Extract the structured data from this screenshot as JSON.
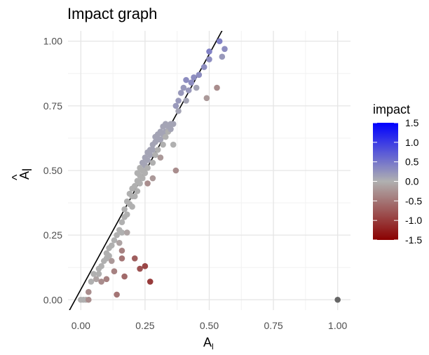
{
  "chart_data": {
    "type": "scatter",
    "title": "Impact graph",
    "xlabel": "A",
    "xlabel_subscript": "l",
    "ylabel": "A",
    "ylabel_accent": "^",
    "ylabel_subscript": "l",
    "xlim": [
      -0.05,
      1.05
    ],
    "ylim": [
      -0.04,
      1.04
    ],
    "x_ticks": [
      "0.00",
      "0.25",
      "0.50",
      "0.75",
      "1.00"
    ],
    "y_ticks": [
      "0.00",
      "0.25",
      "0.50",
      "0.75",
      "1.00"
    ],
    "grid": true,
    "reference_line": {
      "slope": 1.82,
      "intercept": 0.04
    },
    "legend": {
      "title": "impact",
      "placement": "right",
      "ticks": [
        "1.5",
        "1.0",
        "0.5",
        "0.0",
        "-0.5",
        "-1.0",
        "-1.5"
      ],
      "range": [
        -1.5,
        1.5
      ],
      "colors": {
        "high": "#0000ff",
        "mid": "#b0b0b0",
        "low": "#8b0000"
      }
    },
    "points": [
      {
        "x": 0.0,
        "y": 0.0,
        "impact": 0.0
      },
      {
        "x": 0.01,
        "y": 0.0,
        "impact": 0.0
      },
      {
        "x": 0.02,
        "y": 0.0,
        "impact": 0.0
      },
      {
        "x": 0.03,
        "y": 0.03,
        "impact": -0.3
      },
      {
        "x": 0.03,
        "y": 0.0,
        "impact": -0.3
      },
      {
        "x": 0.04,
        "y": 0.07,
        "impact": 0.0
      },
      {
        "x": 0.05,
        "y": 0.1,
        "impact": 0.0
      },
      {
        "x": 0.06,
        "y": 0.08,
        "impact": -0.1
      },
      {
        "x": 0.07,
        "y": 0.1,
        "impact": 0.0
      },
      {
        "x": 0.07,
        "y": 0.12,
        "impact": 0.0
      },
      {
        "x": 0.08,
        "y": 0.13,
        "impact": 0.0
      },
      {
        "x": 0.08,
        "y": 0.07,
        "impact": -0.3
      },
      {
        "x": 0.09,
        "y": 0.15,
        "impact": 0.0
      },
      {
        "x": 0.1,
        "y": 0.16,
        "impact": 0.0
      },
      {
        "x": 0.1,
        "y": 0.18,
        "impact": 0.0
      },
      {
        "x": 0.1,
        "y": 0.08,
        "impact": -0.4
      },
      {
        "x": 0.11,
        "y": 0.2,
        "impact": 0.0
      },
      {
        "x": 0.11,
        "y": 0.17,
        "impact": 0.0
      },
      {
        "x": 0.12,
        "y": 0.21,
        "impact": 0.0
      },
      {
        "x": 0.12,
        "y": 0.15,
        "impact": -0.2
      },
      {
        "x": 0.13,
        "y": 0.23,
        "impact": 0.0
      },
      {
        "x": 0.13,
        "y": 0.11,
        "impact": -0.4
      },
      {
        "x": 0.14,
        "y": 0.25,
        "impact": 0.0
      },
      {
        "x": 0.14,
        "y": 0.02,
        "impact": -0.5
      },
      {
        "x": 0.15,
        "y": 0.27,
        "impact": 0.0
      },
      {
        "x": 0.15,
        "y": 0.22,
        "impact": -0.1
      },
      {
        "x": 0.16,
        "y": 0.3,
        "impact": 0.0
      },
      {
        "x": 0.16,
        "y": 0.26,
        "impact": 0.0
      },
      {
        "x": 0.16,
        "y": 0.19,
        "impact": -0.4
      },
      {
        "x": 0.16,
        "y": 0.16,
        "impact": -0.5
      },
      {
        "x": 0.17,
        "y": 0.32,
        "impact": 0.0
      },
      {
        "x": 0.17,
        "y": 0.09,
        "impact": -0.6
      },
      {
        "x": 0.17,
        "y": 0.35,
        "impact": 0.0
      },
      {
        "x": 0.18,
        "y": 0.33,
        "impact": 0.0
      },
      {
        "x": 0.18,
        "y": 0.26,
        "impact": -0.1
      },
      {
        "x": 0.18,
        "y": 0.38,
        "impact": 0.0
      },
      {
        "x": 0.19,
        "y": 0.37,
        "impact": 0.0
      },
      {
        "x": 0.19,
        "y": 0.41,
        "impact": 0.0
      },
      {
        "x": 0.2,
        "y": 0.4,
        "impact": 0.0
      },
      {
        "x": 0.2,
        "y": 0.43,
        "impact": 0.0
      },
      {
        "x": 0.2,
        "y": 0.36,
        "impact": 0.0
      },
      {
        "x": 0.21,
        "y": 0.44,
        "impact": 0.0
      },
      {
        "x": 0.21,
        "y": 0.16,
        "impact": -0.7
      },
      {
        "x": 0.21,
        "y": 0.4,
        "impact": 0.0
      },
      {
        "x": 0.22,
        "y": 0.46,
        "impact": 0.0
      },
      {
        "x": 0.22,
        "y": 0.42,
        "impact": 0.0
      },
      {
        "x": 0.22,
        "y": 0.49,
        "impact": 0.0
      },
      {
        "x": 0.23,
        "y": 0.48,
        "impact": 0.0
      },
      {
        "x": 0.23,
        "y": 0.12,
        "impact": -0.8
      },
      {
        "x": 0.23,
        "y": 0.51,
        "impact": 0.0
      },
      {
        "x": 0.23,
        "y": 0.45,
        "impact": 0.0
      },
      {
        "x": 0.24,
        "y": 0.5,
        "impact": 0.0
      },
      {
        "x": 0.24,
        "y": 0.53,
        "impact": 0.1
      },
      {
        "x": 0.24,
        "y": 0.47,
        "impact": 0.0
      },
      {
        "x": 0.25,
        "y": 0.52,
        "impact": 0.1
      },
      {
        "x": 0.25,
        "y": 0.55,
        "impact": 0.1
      },
      {
        "x": 0.25,
        "y": 0.13,
        "impact": -0.9
      },
      {
        "x": 0.25,
        "y": 0.49,
        "impact": 0.0
      },
      {
        "x": 0.26,
        "y": 0.54,
        "impact": 0.1
      },
      {
        "x": 0.26,
        "y": 0.57,
        "impact": 0.1
      },
      {
        "x": 0.26,
        "y": 0.51,
        "impact": 0.0
      },
      {
        "x": 0.26,
        "y": 0.45,
        "impact": -0.3
      },
      {
        "x": 0.27,
        "y": 0.56,
        "impact": 0.1
      },
      {
        "x": 0.27,
        "y": 0.58,
        "impact": 0.1
      },
      {
        "x": 0.27,
        "y": 0.07,
        "impact": -1.0
      },
      {
        "x": 0.28,
        "y": 0.58,
        "impact": 0.1
      },
      {
        "x": 0.28,
        "y": 0.6,
        "impact": 0.1
      },
      {
        "x": 0.28,
        "y": 0.53,
        "impact": 0.0
      },
      {
        "x": 0.28,
        "y": 0.47,
        "impact": -0.2
      },
      {
        "x": 0.29,
        "y": 0.61,
        "impact": 0.1
      },
      {
        "x": 0.29,
        "y": 0.63,
        "impact": 0.1
      },
      {
        "x": 0.29,
        "y": 0.56,
        "impact": 0.0
      },
      {
        "x": 0.3,
        "y": 0.62,
        "impact": 0.1
      },
      {
        "x": 0.3,
        "y": 0.64,
        "impact": 0.1
      },
      {
        "x": 0.3,
        "y": 0.58,
        "impact": 0.0
      },
      {
        "x": 0.31,
        "y": 0.65,
        "impact": 0.1
      },
      {
        "x": 0.31,
        "y": 0.62,
        "impact": 0.1
      },
      {
        "x": 0.31,
        "y": 0.55,
        "impact": -0.2
      },
      {
        "x": 0.32,
        "y": 0.67,
        "impact": 0.1
      },
      {
        "x": 0.32,
        "y": 0.64,
        "impact": 0.1
      },
      {
        "x": 0.32,
        "y": 0.6,
        "impact": 0.0
      },
      {
        "x": 0.33,
        "y": 0.68,
        "impact": 0.1
      },
      {
        "x": 0.33,
        "y": 0.65,
        "impact": 0.1
      },
      {
        "x": 0.33,
        "y": 0.63,
        "impact": 0.0
      },
      {
        "x": 0.34,
        "y": 0.67,
        "impact": 0.1
      },
      {
        "x": 0.34,
        "y": 0.65,
        "impact": 0.0
      },
      {
        "x": 0.35,
        "y": 0.68,
        "impact": 0.1
      },
      {
        "x": 0.35,
        "y": 0.66,
        "impact": 0.1
      },
      {
        "x": 0.36,
        "y": 0.68,
        "impact": 0.1
      },
      {
        "x": 0.36,
        "y": 0.6,
        "impact": 0.0
      },
      {
        "x": 0.37,
        "y": 0.5,
        "impact": -0.3
      },
      {
        "x": 0.37,
        "y": 0.75,
        "impact": 0.2
      },
      {
        "x": 0.38,
        "y": 0.77,
        "impact": 0.2
      },
      {
        "x": 0.38,
        "y": 0.73,
        "impact": 0.1
      },
      {
        "x": 0.39,
        "y": 0.8,
        "impact": 0.2
      },
      {
        "x": 0.4,
        "y": 0.82,
        "impact": 0.2
      },
      {
        "x": 0.41,
        "y": 0.77,
        "impact": 0.1
      },
      {
        "x": 0.41,
        "y": 0.85,
        "impact": 0.3
      },
      {
        "x": 0.42,
        "y": 0.81,
        "impact": 0.2
      },
      {
        "x": 0.43,
        "y": 0.84,
        "impact": 0.3
      },
      {
        "x": 0.44,
        "y": 0.86,
        "impact": 0.3
      },
      {
        "x": 0.45,
        "y": 0.82,
        "impact": 0.1
      },
      {
        "x": 0.46,
        "y": 0.87,
        "impact": 0.3
      },
      {
        "x": 0.48,
        "y": 0.9,
        "impact": 0.3
      },
      {
        "x": 0.49,
        "y": 0.78,
        "impact": -0.2
      },
      {
        "x": 0.5,
        "y": 0.96,
        "impact": 0.4
      },
      {
        "x": 0.5,
        "y": 0.93,
        "impact": 0.3
      },
      {
        "x": 0.53,
        "y": 0.82,
        "impact": -0.3
      },
      {
        "x": 0.54,
        "y": 1.0,
        "impact": 0.4
      },
      {
        "x": 0.55,
        "y": 0.94,
        "impact": 0.2
      },
      {
        "x": 0.56,
        "y": 0.97,
        "impact": 0.3
      },
      {
        "x": 1.0,
        "y": 0.0,
        "impact": -0.05,
        "color": "#666666"
      }
    ]
  }
}
